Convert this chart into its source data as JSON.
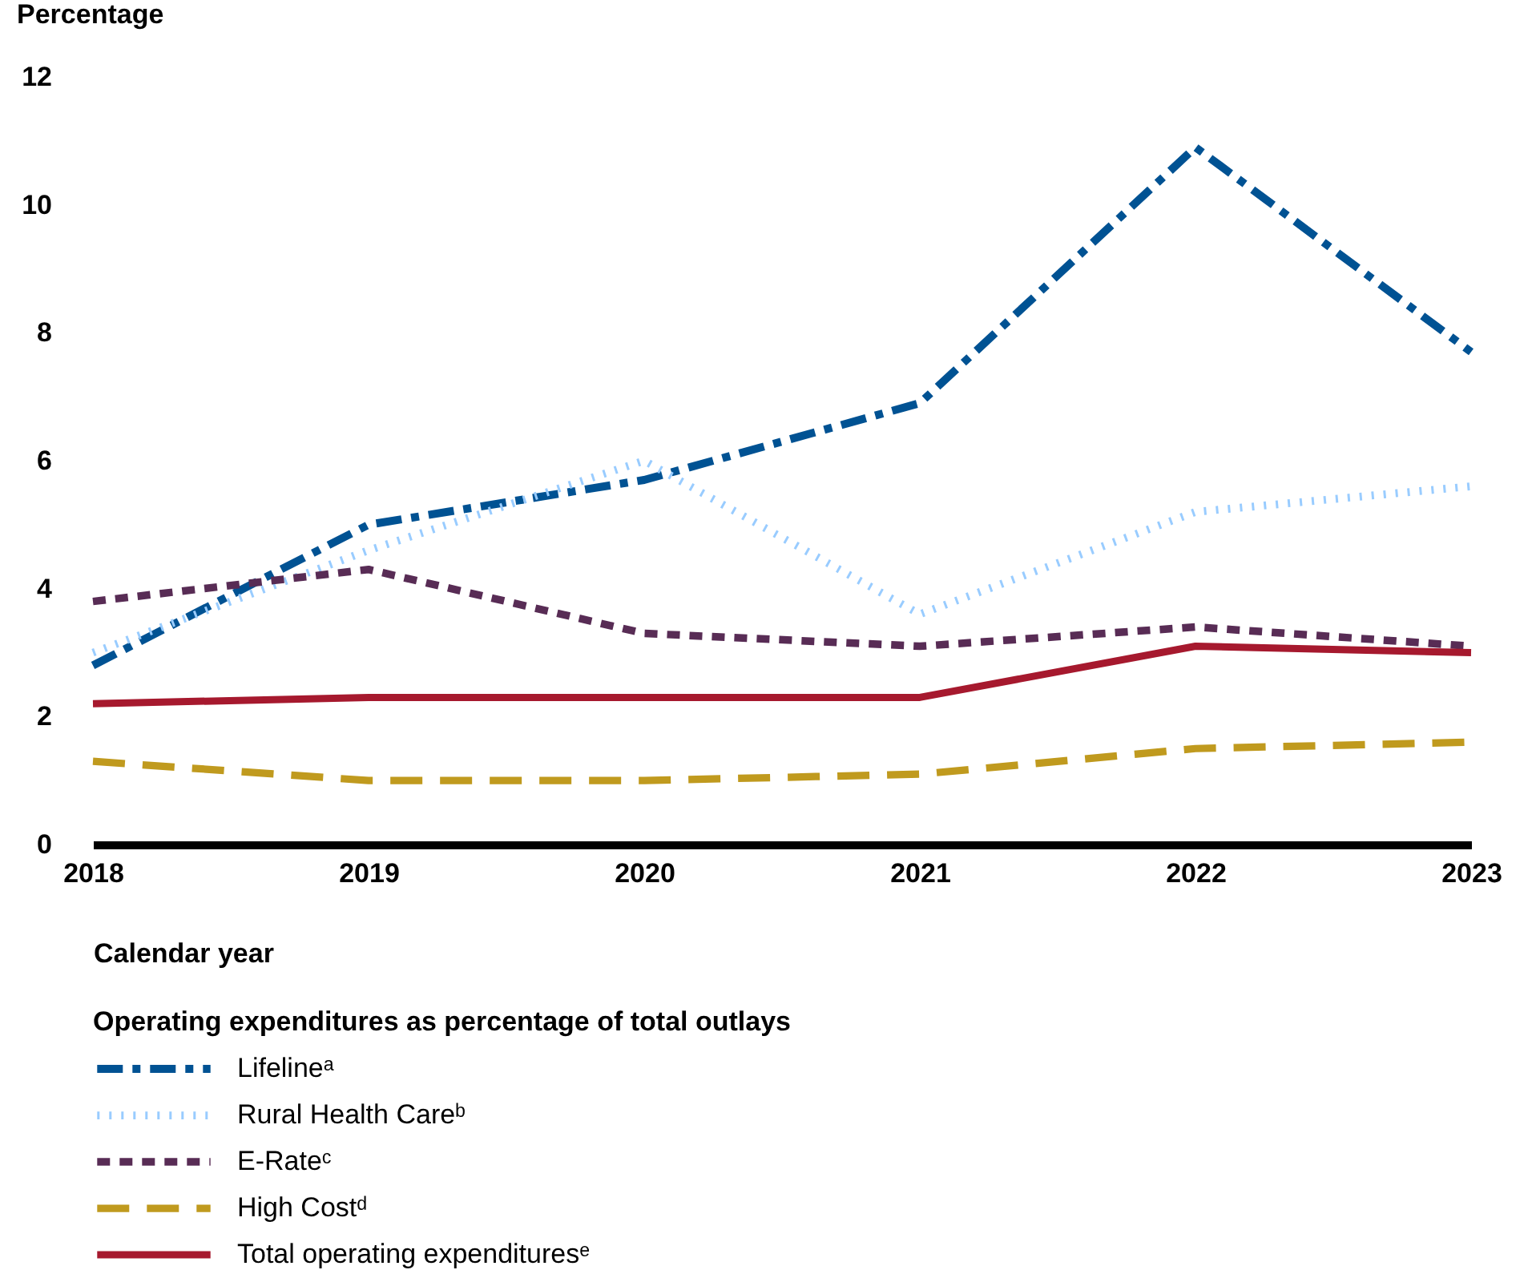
{
  "chart_data": {
    "type": "line",
    "categories": [
      "2018",
      "2019",
      "2020",
      "2021",
      "2022",
      "2023"
    ],
    "series": [
      {
        "name": "Lifelineᵃ",
        "color": "#005293",
        "line_style": "dashdot",
        "values": [
          2.8,
          5.0,
          5.7,
          6.9,
          10.9,
          7.7
        ]
      },
      {
        "name": "Rural Health Careᵇ",
        "color": "#99ccff",
        "line_style": "dotted",
        "values": [
          3.0,
          4.6,
          6.0,
          3.6,
          5.2,
          5.6
        ]
      },
      {
        "name": "E-Rateᶜ",
        "color": "#582c55",
        "line_style": "dashed",
        "values": [
          3.8,
          4.3,
          3.3,
          3.1,
          3.4,
          3.1
        ]
      },
      {
        "name": "High Costᵈ",
        "color": "#c09a1e",
        "line_style": "dashed",
        "values": [
          1.3,
          1.0,
          1.0,
          1.1,
          1.5,
          1.6
        ]
      },
      {
        "name": "Total operating expendituresᵉ",
        "color": "#a6192e",
        "line_style": "solid",
        "values": [
          2.2,
          2.3,
          2.3,
          2.3,
          3.1,
          3.0
        ]
      }
    ],
    "xlabel": "Calendar year",
    "ylabel": "Percentage",
    "legend_title": "Operating expenditures as percentage of total outlays",
    "ylim": [
      0,
      12
    ],
    "yticks": [
      0,
      2,
      4,
      6,
      8,
      10,
      12
    ],
    "grid": false,
    "legend": "bottom",
    "marker": "none"
  }
}
